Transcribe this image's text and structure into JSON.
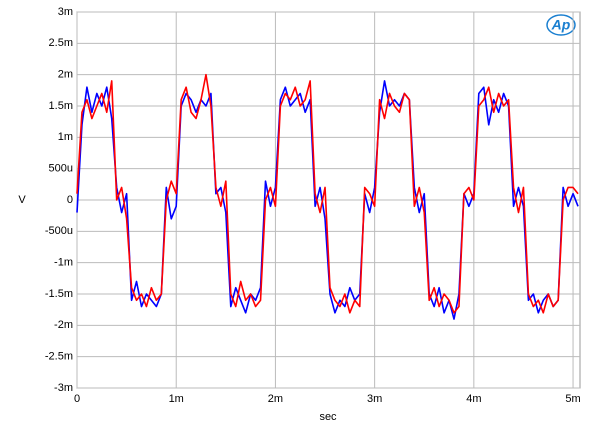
{
  "chart_data": {
    "type": "line",
    "logo": "Ap",
    "xlabel": "sec",
    "ylabel": "V",
    "xlim": [
      0,
      0.00507
    ],
    "ylim": [
      -0.003,
      0.003
    ],
    "grid": true,
    "xticks": [
      {
        "value": 0,
        "label": "0"
      },
      {
        "value": 0.001,
        "label": "1m"
      },
      {
        "value": 0.002,
        "label": "2m"
      },
      {
        "value": 0.003,
        "label": "3m"
      },
      {
        "value": 0.004,
        "label": "4m"
      },
      {
        "value": 0.005,
        "label": "5m"
      }
    ],
    "yticks": [
      {
        "value": 0.003,
        "label": "3m"
      },
      {
        "value": 0.0025,
        "label": "2.5m"
      },
      {
        "value": 0.002,
        "label": "2m"
      },
      {
        "value": 0.0015,
        "label": "1.5m"
      },
      {
        "value": 0.001,
        "label": "1m"
      },
      {
        "value": 0.0005,
        "label": "500u"
      },
      {
        "value": 0,
        "label": "0"
      },
      {
        "value": -0.0005,
        "label": "-500u"
      },
      {
        "value": -0.001,
        "label": "-1m"
      },
      {
        "value": -0.0015,
        "label": "-1.5m"
      },
      {
        "value": -0.002,
        "label": "-2m"
      },
      {
        "value": -0.0025,
        "label": "-2.5m"
      },
      {
        "value": -0.003,
        "label": "-3m"
      }
    ],
    "x": [
      0,
      5e-05,
      0.0001,
      0.00015,
      0.0002,
      0.00025,
      0.0003,
      0.00035,
      0.0004,
      0.00045,
      0.0005,
      0.00055,
      0.0006,
      0.00065,
      0.0007,
      0.00075,
      0.0008,
      0.00085,
      0.0009,
      0.00095,
      0.001,
      0.00105,
      0.0011,
      0.00115,
      0.0012,
      0.00125,
      0.0013,
      0.00135,
      0.0014,
      0.00145,
      0.0015,
      0.00155,
      0.0016,
      0.00165,
      0.0017,
      0.00175,
      0.0018,
      0.00185,
      0.0019,
      0.00195,
      0.002,
      0.00205,
      0.0021,
      0.00215,
      0.0022,
      0.00225,
      0.0023,
      0.00235,
      0.0024,
      0.00245,
      0.0025,
      0.00255,
      0.0026,
      0.00265,
      0.0027,
      0.00275,
      0.0028,
      0.00285,
      0.0029,
      0.00295,
      0.003,
      0.00305,
      0.0031,
      0.00315,
      0.0032,
      0.00325,
      0.0033,
      0.00335,
      0.0034,
      0.00345,
      0.0035,
      0.00355,
      0.0036,
      0.00365,
      0.0037,
      0.00375,
      0.0038,
      0.00385,
      0.0039,
      0.00395,
      0.004,
      0.00405,
      0.0041,
      0.00415,
      0.0042,
      0.00425,
      0.0043,
      0.00435,
      0.0044,
      0.00445,
      0.0045,
      0.00455,
      0.0046,
      0.00465,
      0.0047,
      0.00475,
      0.0048,
      0.00485,
      0.0049,
      0.00495,
      0.005,
      0.00505
    ],
    "series": [
      {
        "color": "#0000ff",
        "values": [
          -0.0002,
          0.0012,
          0.0018,
          0.0014,
          0.0017,
          0.0015,
          0.0018,
          0.0013,
          0.0002,
          -0.0002,
          0.0001,
          -0.0016,
          -0.0013,
          -0.0017,
          -0.0015,
          -0.0016,
          -0.0017,
          -0.0015,
          0.0002,
          -0.0003,
          -0.0001,
          0.0015,
          0.0017,
          0.0016,
          0.0014,
          0.0016,
          0.0015,
          0.0017,
          0.0001,
          0.0002,
          -0.0002,
          -0.0017,
          -0.0014,
          -0.0016,
          -0.0018,
          -0.0015,
          -0.0016,
          -0.0014,
          0.0003,
          -0.0001,
          0.0002,
          0.0016,
          0.0018,
          0.0015,
          0.0016,
          0.0017,
          0.0014,
          0.0016,
          -0.0001,
          0.0002,
          -0.0003,
          -0.0015,
          -0.0018,
          -0.0016,
          -0.0017,
          -0.0014,
          -0.0016,
          -0.0015,
          0.0001,
          -0.0002,
          0.0002,
          0.0014,
          0.0019,
          0.0015,
          0.0016,
          0.0015,
          0.0017,
          0.0016,
          0.0002,
          -0.0002,
          0.0001,
          -0.0015,
          -0.0017,
          -0.0014,
          -0.0018,
          -0.0016,
          -0.0019,
          -0.0015,
          0.0001,
          -0.0001,
          0.0001,
          0.0017,
          0.0018,
          0.0012,
          0.0016,
          0.0014,
          0.0017,
          0.0015,
          -0.0001,
          0.0002,
          -0.0001,
          -0.0016,
          -0.0015,
          -0.0018,
          -0.0016,
          -0.0015,
          -0.0017,
          -0.0016,
          0.0002,
          -0.0001,
          0.0001,
          -0.0001
        ]
      },
      {
        "color": "#ff0000",
        "values": [
          0.0001,
          0.0014,
          0.0016,
          0.0013,
          0.0015,
          0.0017,
          0.0014,
          0.0019,
          0.0,
          0.0002,
          -0.0003,
          -0.0014,
          -0.0016,
          -0.0015,
          -0.0017,
          -0.0014,
          -0.0016,
          -0.0015,
          0.0,
          0.0003,
          0.0001,
          0.0016,
          0.0018,
          0.0014,
          0.0013,
          0.0016,
          0.002,
          0.0015,
          0.0002,
          -0.0001,
          0.0003,
          -0.0015,
          -0.0017,
          -0.0013,
          -0.0016,
          -0.0015,
          -0.0017,
          -0.0016,
          0.0,
          0.0002,
          -0.0001,
          0.0015,
          0.0017,
          0.0016,
          0.0018,
          0.0015,
          0.0016,
          0.0019,
          0.0001,
          -0.0002,
          0.0002,
          -0.0014,
          -0.0016,
          -0.0017,
          -0.0015,
          -0.0018,
          -0.0016,
          -0.0017,
          0.0002,
          0.0001,
          -0.0001,
          0.0016,
          0.0013,
          0.0017,
          0.0015,
          0.0014,
          0.0017,
          0.0016,
          -0.0001,
          0.0002,
          -0.0002,
          -0.0016,
          -0.0014,
          -0.0017,
          -0.0015,
          -0.0016,
          -0.0018,
          -0.0017,
          0.0001,
          0.0002,
          0.0,
          0.0015,
          0.0016,
          0.0018,
          0.0014,
          0.0017,
          0.0015,
          0.0016,
          0.0002,
          -0.0002,
          0.0002,
          -0.0015,
          -0.0017,
          -0.0016,
          -0.0018,
          -0.0015,
          -0.0017,
          -0.0016,
          0.0,
          0.0002,
          0.0002,
          0.0001
        ]
      }
    ]
  }
}
